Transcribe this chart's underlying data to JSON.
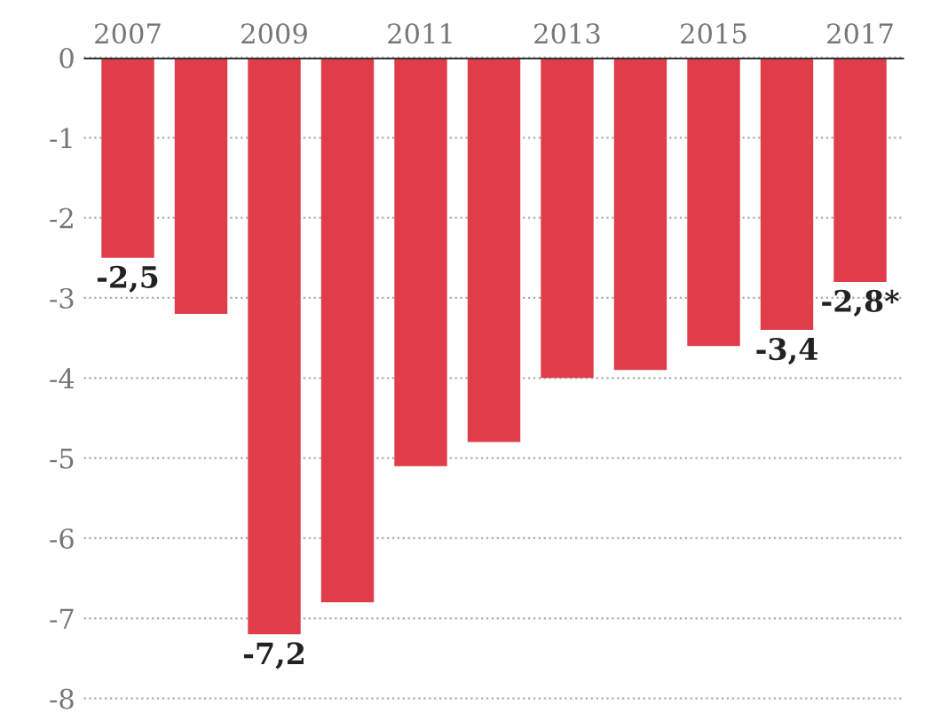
{
  "chart_data": {
    "type": "bar",
    "categories": [
      "2007",
      null,
      "2009",
      null,
      "2011",
      null,
      "2013",
      null,
      "2015",
      null,
      "2017"
    ],
    "values": [
      -2.5,
      -3.2,
      -7.2,
      -6.8,
      -5.1,
      -4.8,
      -4.0,
      -3.9,
      -3.6,
      -3.4,
      -2.8
    ],
    "color": "#e03c4a",
    "value_labels": [
      "-2,5",
      null,
      "-7,2",
      null,
      null,
      null,
      null,
      null,
      null,
      "-3,4",
      "-2,8*"
    ],
    "ylim": [
      -8,
      0
    ],
    "yticks": [
      0,
      -1,
      -2,
      -3,
      -4,
      -5,
      -6,
      -7,
      -8
    ],
    "grid": "y"
  }
}
